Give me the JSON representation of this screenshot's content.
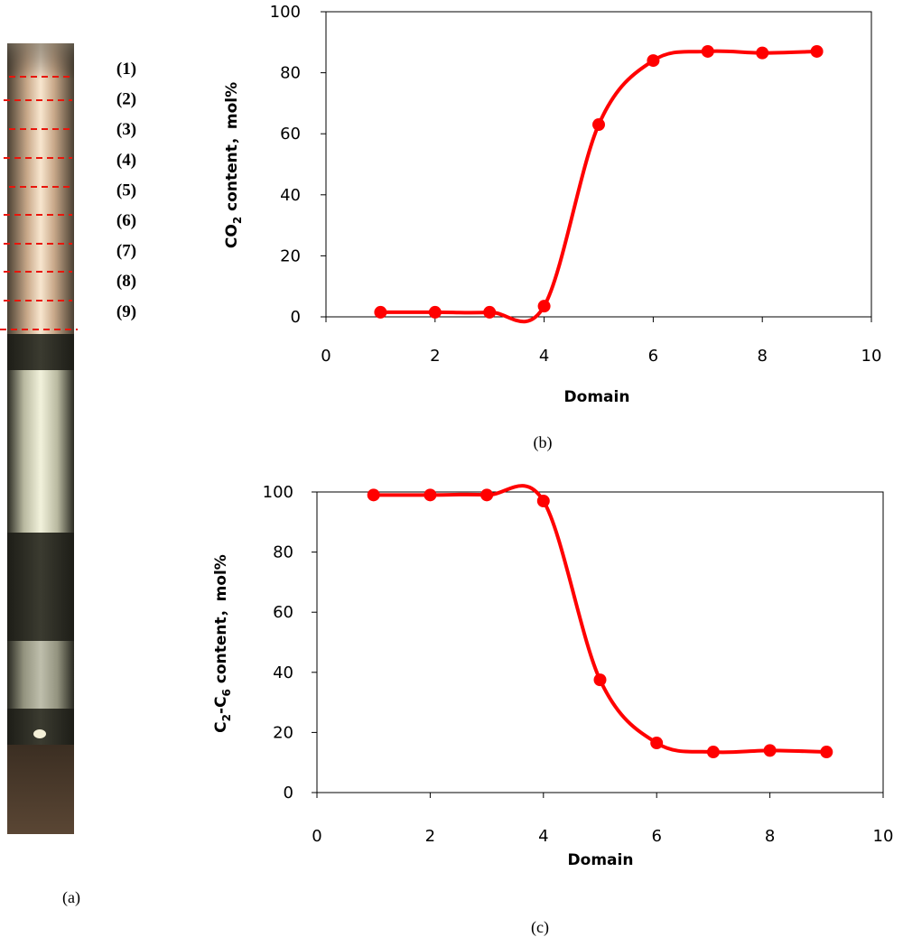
{
  "photo": {
    "panel_label": "(a)",
    "domain_labels": [
      "(1)",
      "(2)",
      "(3)",
      "(4)",
      "(5)",
      "(6)",
      "(7)",
      "(8)",
      "(9)"
    ],
    "marker_color": "#e8160c"
  },
  "chart_data": [
    {
      "type": "line",
      "panel_label": "(b)",
      "xlabel": "Domain",
      "ylabel_main": "CO",
      "ylabel_sub": "2",
      "ylabel_rest": " content，mol%",
      "xlim": [
        0,
        10
      ],
      "ylim": [
        0,
        100
      ],
      "xticks": [
        "0",
        "2",
        "4",
        "6",
        "8",
        "10"
      ],
      "yticks": [
        "0",
        "20",
        "40",
        "60",
        "80",
        "100"
      ],
      "color": "#ff0000",
      "x": [
        1,
        2,
        3,
        4,
        5,
        6,
        7,
        8,
        9
      ],
      "y": [
        1.5,
        1.5,
        1.5,
        3.5,
        63,
        84,
        87,
        86.5,
        87
      ]
    },
    {
      "type": "line",
      "panel_label": "(c)",
      "xlabel": "Domain",
      "ylabel_main": "C",
      "ylabel_sub": "2",
      "ylabel_mid": "-C",
      "ylabel_sub2": "6",
      "ylabel_rest": " content，mol%",
      "xlim": [
        0,
        10
      ],
      "ylim": [
        0,
        100
      ],
      "xticks": [
        "0",
        "2",
        "4",
        "6",
        "8",
        "10"
      ],
      "yticks": [
        "0",
        "20",
        "40",
        "60",
        "80",
        "100"
      ],
      "color": "#ff0000",
      "x": [
        1,
        2,
        3,
        4,
        5,
        6,
        7,
        8,
        9
      ],
      "y": [
        99,
        99,
        99,
        97,
        37.5,
        16.5,
        13.5,
        14,
        13.5
      ]
    }
  ]
}
